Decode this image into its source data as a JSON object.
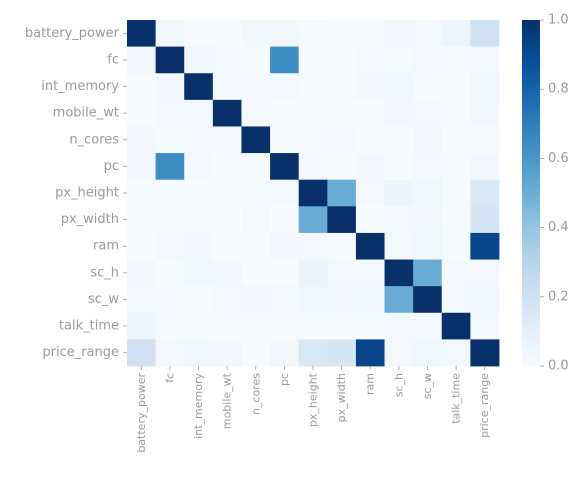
{
  "chart_data": {
    "type": "heatmap",
    "title": "",
    "xlabel": "",
    "ylabel": "",
    "labels": [
      "battery_power",
      "fc",
      "int_memory",
      "mobile_wt",
      "n_cores",
      "pc",
      "px_height",
      "px_width",
      "ram",
      "sc_h",
      "sc_w",
      "talk_time",
      "price_range"
    ],
    "values": [
      [
        1.0,
        0.03,
        0.0,
        0.0,
        0.03,
        0.03,
        0.01,
        0.0,
        0.0,
        0.03,
        0.02,
        0.05,
        0.2
      ],
      [
        0.03,
        1.0,
        0.03,
        0.02,
        0.01,
        0.64,
        0.01,
        0.01,
        0.02,
        0.01,
        0.02,
        0.01,
        0.02
      ],
      [
        0.0,
        0.03,
        1.0,
        0.02,
        0.02,
        0.02,
        0.01,
        0.01,
        0.03,
        0.04,
        0.01,
        0.0,
        0.04
      ],
      [
        0.0,
        0.02,
        0.02,
        1.0,
        0.02,
        0.01,
        0.0,
        0.0,
        0.0,
        0.03,
        0.02,
        0.01,
        0.03
      ],
      [
        0.03,
        0.01,
        0.02,
        0.02,
        1.0,
        0.0,
        0.01,
        0.02,
        0.0,
        0.0,
        0.03,
        0.01,
        0.0
      ],
      [
        0.03,
        0.64,
        0.02,
        0.01,
        0.0,
        1.0,
        0.02,
        0.0,
        0.03,
        0.0,
        0.02,
        0.01,
        0.03
      ],
      [
        0.01,
        0.01,
        0.01,
        0.0,
        0.01,
        0.02,
        1.0,
        0.51,
        0.02,
        0.06,
        0.04,
        0.01,
        0.15
      ],
      [
        0.0,
        0.01,
        0.01,
        0.0,
        0.02,
        0.0,
        0.51,
        1.0,
        0.0,
        0.02,
        0.03,
        0.01,
        0.17
      ],
      [
        0.0,
        0.02,
        0.03,
        0.0,
        0.0,
        0.03,
        0.02,
        0.0,
        1.0,
        0.02,
        0.04,
        0.01,
        0.92
      ],
      [
        0.03,
        0.01,
        0.04,
        0.03,
        0.0,
        0.0,
        0.06,
        0.02,
        0.02,
        1.0,
        0.51,
        0.02,
        0.02
      ],
      [
        0.02,
        0.02,
        0.01,
        0.02,
        0.03,
        0.02,
        0.04,
        0.03,
        0.04,
        0.51,
        1.0,
        0.02,
        0.04
      ],
      [
        0.05,
        0.01,
        0.0,
        0.01,
        0.01,
        0.01,
        0.01,
        0.01,
        0.01,
        0.02,
        0.02,
        1.0,
        0.02
      ],
      [
        0.2,
        0.02,
        0.04,
        0.03,
        0.0,
        0.03,
        0.15,
        0.17,
        0.92,
        0.02,
        0.04,
        0.02,
        1.0
      ]
    ],
    "colorbar": {
      "range": [
        0.0,
        1.0
      ],
      "ticks": [
        "0.0",
        "0.2",
        "0.4",
        "0.6",
        "0.8",
        "1.0"
      ],
      "colormap": "Blues",
      "low_color": "#f7fbff",
      "high_color": "#08306b"
    }
  }
}
